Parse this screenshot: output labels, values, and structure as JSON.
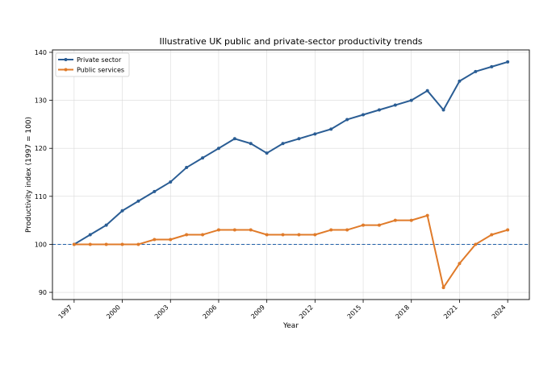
{
  "chart_data": {
    "type": "line",
    "title": "Illustrative UK public and private-sector productivity trends",
    "xlabel": "Year",
    "ylabel": "Productivity index (1997 = 100)",
    "x": [
      1997,
      1998,
      1999,
      2000,
      2001,
      2002,
      2003,
      2004,
      2005,
      2006,
      2007,
      2008,
      2009,
      2010,
      2011,
      2012,
      2013,
      2014,
      2015,
      2016,
      2017,
      2018,
      2019,
      2020,
      2021,
      2022,
      2023,
      2024
    ],
    "xticks": [
      "1997",
      "2000",
      "2003",
      "2006",
      "2009",
      "2012",
      "2015",
      "2018",
      "2021",
      "2024"
    ],
    "yticks": [
      "90",
      "100",
      "110",
      "120",
      "130",
      "140"
    ],
    "xlim": [
      1995.65,
      2025.35
    ],
    "ylim": [
      88.5,
      140.5
    ],
    "grid": true,
    "legend_position": "top-left",
    "reference_line": {
      "y": 100,
      "color": "#1f5fa8",
      "style": "dashed"
    },
    "series": [
      {
        "name": "Private sector",
        "color": "#2a5d94",
        "values": [
          100,
          102,
          104,
          107,
          109,
          111,
          113,
          116,
          118,
          120,
          122,
          121,
          119,
          121,
          122,
          123,
          124,
          126,
          127,
          128,
          129,
          130,
          132,
          128,
          134,
          136,
          137,
          138
        ]
      },
      {
        "name": "Public services",
        "color": "#e07b2a",
        "values": [
          100,
          100,
          100,
          100,
          100,
          101,
          101,
          102,
          102,
          103,
          103,
          103,
          102,
          102,
          102,
          102,
          103,
          103,
          104,
          104,
          105,
          105,
          106,
          91,
          96,
          100,
          102,
          103
        ]
      }
    ]
  }
}
